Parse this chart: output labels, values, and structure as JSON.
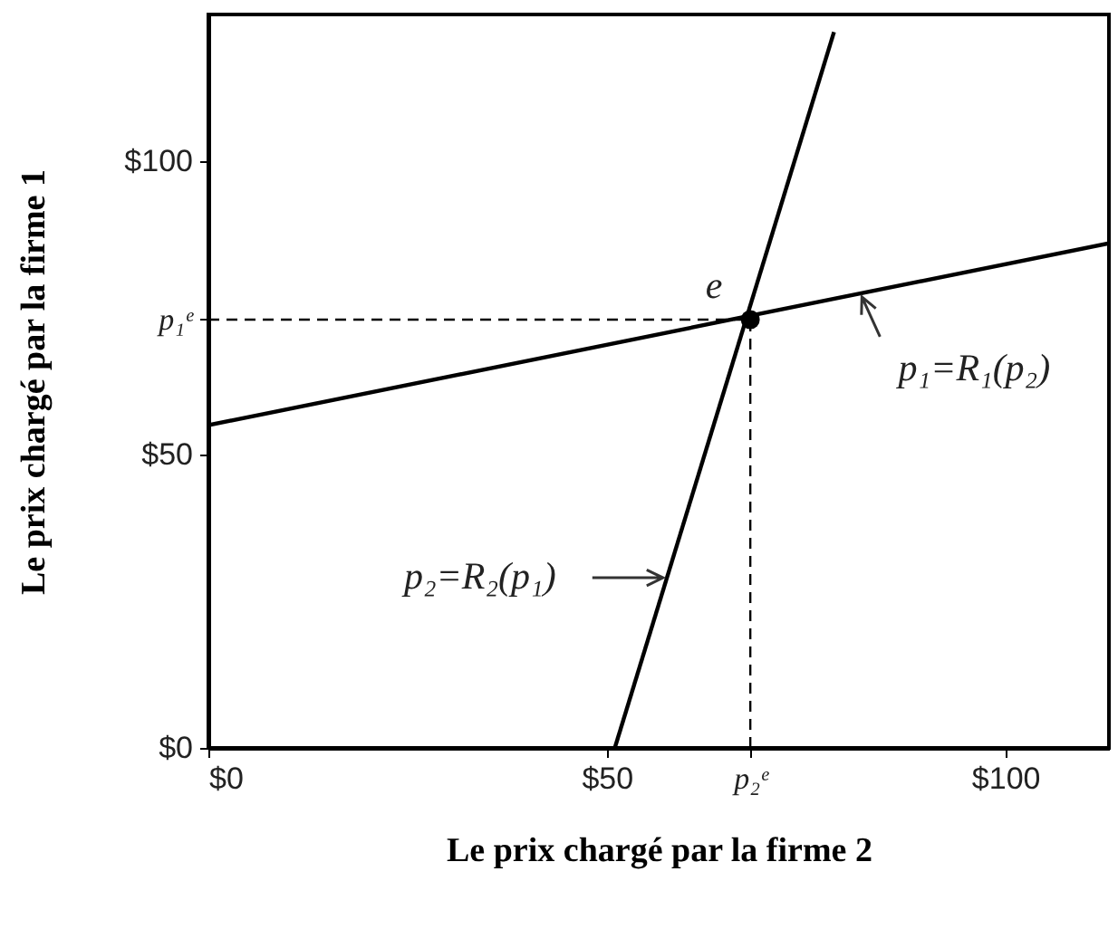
{
  "chart_data": {
    "type": "line",
    "xlabel": "Le prix chargé par la firme 2",
    "ylabel": "Le prix chargé par la firme 1",
    "xlim": [
      0,
      113
    ],
    "ylim": [
      0,
      125
    ],
    "xticks": [
      {
        "value": 0,
        "label": "$0"
      },
      {
        "value": 50,
        "label": "$50"
      },
      {
        "value": 68,
        "label": "p₂ᵉ"
      },
      {
        "value": 100,
        "label": "$100"
      }
    ],
    "yticks": [
      {
        "value": 0,
        "label": "$0"
      },
      {
        "value": 50,
        "label": "$50"
      },
      {
        "value": 73,
        "label": "p₁ᵉ"
      },
      {
        "value": 100,
        "label": "$100"
      }
    ],
    "grid": false,
    "series": [
      {
        "color": "#000000",
        "x": [
          0,
          113
        ],
        "values": [
          55,
          86
        ]
      },
      {
        "color": "#000000",
        "x": [
          51,
          78.5
        ],
        "values": [
          0,
          122
        ]
      },
      {
        "color": "#000000",
        "line_style": "dashed",
        "x": [
          0,
          68
        ],
        "values": [
          73,
          73
        ]
      },
      {
        "color": "#000000",
        "line_style": "dashed",
        "x": [
          68,
          68
        ],
        "values": [
          0,
          73
        ]
      },
      {
        "type": "scatter",
        "color": "#000000",
        "marker": "circle",
        "x": [
          68
        ],
        "values": [
          73
        ]
      }
    ],
    "annotations": [
      {
        "text": "e",
        "x": 68,
        "y": 73
      },
      {
        "text": "p₁=R₁(p₂)",
        "x": 82,
        "y": 77.5
      },
      {
        "text": "p₂=R₂(p₁)",
        "x": 57.5,
        "y": 29
      }
    ]
  }
}
